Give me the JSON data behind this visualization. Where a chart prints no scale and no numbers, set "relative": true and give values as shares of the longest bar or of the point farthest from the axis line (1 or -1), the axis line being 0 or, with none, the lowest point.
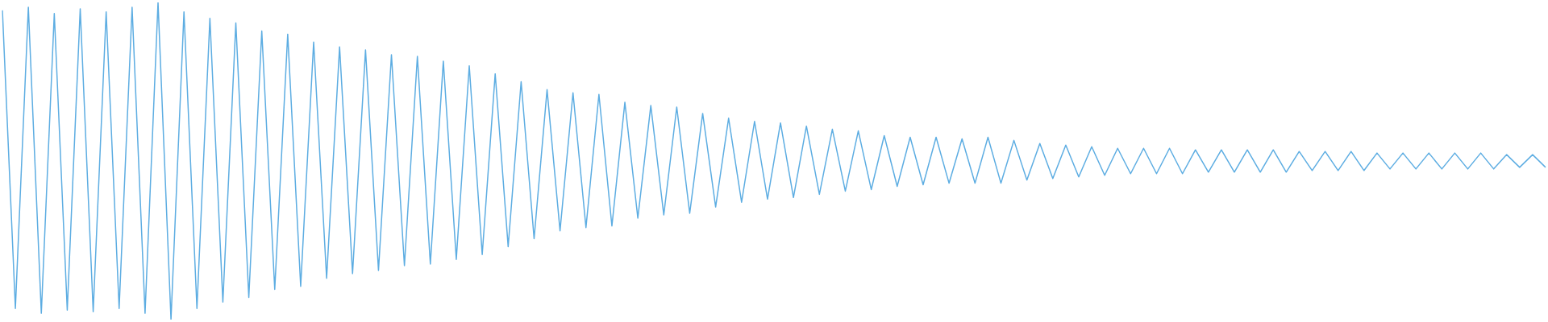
{
  "chart_data": {
    "type": "line",
    "relative": true,
    "grid": false,
    "legend": false,
    "marker": "none",
    "line_style": "solid",
    "categories": [
      null,
      null,
      null,
      null,
      null,
      null,
      null,
      null,
      null,
      null,
      null,
      null,
      null,
      null,
      null,
      null,
      null,
      null,
      null,
      null,
      null,
      null,
      null,
      null,
      null,
      null,
      null,
      null,
      null,
      null,
      null,
      null,
      null,
      null,
      null,
      null,
      null,
      null,
      null,
      null,
      null,
      null,
      null,
      null,
      null,
      null,
      null,
      null,
      null,
      null,
      null,
      null,
      null,
      null,
      null,
      null,
      null,
      null,
      null,
      null,
      null,
      null,
      null,
      null,
      null,
      null,
      null,
      null,
      null,
      null,
      null,
      null,
      null,
      null,
      null,
      null,
      null,
      null,
      null,
      null,
      null,
      null,
      null,
      null,
      null,
      null,
      null,
      null,
      null,
      null,
      null,
      null,
      null,
      null,
      null,
      null,
      null,
      null,
      null,
      null,
      null,
      null,
      null,
      null,
      null,
      null,
      null,
      null,
      null,
      null,
      null,
      null,
      null,
      null,
      null,
      null,
      null,
      null,
      null,
      null
    ],
    "series": [
      {
        "color": "#5dade2",
        "values": [
          0.975,
          0.035,
          0.985,
          0.02,
          0.965,
          0.03,
          0.98,
          0.025,
          0.97,
          0.035,
          0.985,
          0.02,
          1,
          0,
          0.97,
          0.035,
          0.95,
          0.055,
          0.935,
          0.07,
          0.91,
          0.095,
          0.9,
          0.105,
          0.875,
          0.13,
          0.86,
          0.145,
          0.85,
          0.155,
          0.835,
          0.17,
          0.83,
          0.175,
          0.815,
          0.19,
          0.8,
          0.205,
          0.775,
          0.23,
          0.75,
          0.255,
          0.725,
          0.28,
          0.715,
          0.29,
          0.71,
          0.295,
          0.685,
          0.32,
          0.675,
          0.33,
          0.67,
          0.335,
          0.65,
          0.355,
          0.635,
          0.37,
          0.625,
          0.38,
          0.62,
          0.385,
          0.61,
          0.395,
          0.6,
          0.405,
          0.595,
          0.41,
          0.58,
          0.42,
          0.575,
          0.425,
          0.575,
          0.43,
          0.57,
          0.43,
          0.575,
          0.43,
          0.565,
          0.44,
          0.555,
          0.445,
          0.55,
          0.45,
          0.545,
          0.455,
          0.54,
          0.46,
          0.54,
          0.46,
          0.54,
          0.46,
          0.535,
          0.465,
          0.535,
          0.465,
          0.535,
          0.465,
          0.535,
          0.465,
          0.53,
          0.47,
          0.53,
          0.47,
          0.53,
          0.47,
          0.525,
          0.475,
          0.525,
          0.475,
          0.525,
          0.475,
          0.525,
          0.475,
          0.525,
          0.475,
          0.52,
          0.48,
          0.52,
          0.48
        ]
      }
    ]
  }
}
